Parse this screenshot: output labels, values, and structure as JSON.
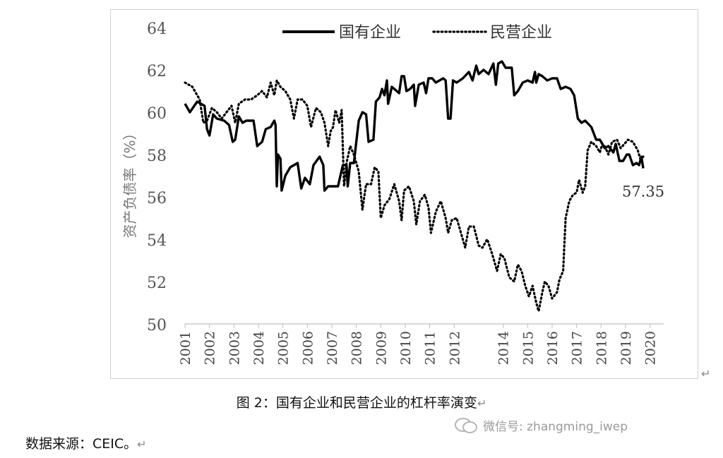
{
  "caption": "图 2：国有企业和民营企业的杠杆率演变",
  "source": "数据来源：CEIC。",
  "watermark": "微信号: zhangming_iwep",
  "return_mark": "↵",
  "chart_data": {
    "type": "line",
    "ylabel": "资产负债率（%）",
    "ylim": [
      50,
      64
    ],
    "yticks": [
      50,
      52,
      54,
      56,
      58,
      60,
      62,
      64
    ],
    "xlim": [
      2001.0,
      2020.5
    ],
    "xticks": [
      2001,
      2002,
      2003,
      2004,
      2005,
      2006,
      2007,
      2008,
      2009,
      2010,
      2011,
      2012,
      2014,
      2015,
      2016,
      2017,
      2018,
      2019,
      2020
    ],
    "xtick_labels": [
      "2001",
      "2002",
      "2003",
      "2004",
      "2005",
      "2006",
      "2007",
      "2008",
      "2009",
      "2010",
      "2011",
      "2012",
      "2014",
      "2015",
      "2016",
      "2017",
      "2018",
      "2019",
      "2020"
    ],
    "legend_position": "top",
    "annotation": "57.35",
    "series": [
      {
        "name": "国有企业",
        "style": "solid",
        "color": "#000000",
        "points": [
          [
            2001.0,
            60.4
          ],
          [
            2001.2,
            60.0
          ],
          [
            2001.5,
            60.5
          ],
          [
            2001.8,
            60.3
          ],
          [
            2001.9,
            59.2
          ],
          [
            2002.0,
            58.9
          ],
          [
            2002.15,
            59.9
          ],
          [
            2002.3,
            59.7
          ],
          [
            2002.6,
            59.6
          ],
          [
            2002.8,
            59.4
          ],
          [
            2002.95,
            58.6
          ],
          [
            2003.05,
            58.7
          ],
          [
            2003.2,
            59.8
          ],
          [
            2003.35,
            59.5
          ],
          [
            2003.5,
            59.6
          ],
          [
            2003.8,
            59.6
          ],
          [
            2003.95,
            58.4
          ],
          [
            2004.15,
            58.6
          ],
          [
            2004.3,
            59.2
          ],
          [
            2004.5,
            59.3
          ],
          [
            2004.65,
            59.6
          ],
          [
            2004.7,
            59.4
          ],
          [
            2004.75,
            56.5
          ],
          [
            2004.8,
            58.0
          ],
          [
            2004.9,
            57.8
          ],
          [
            2004.95,
            56.3
          ],
          [
            2005.1,
            57.0
          ],
          [
            2005.3,
            57.4
          ],
          [
            2005.6,
            57.6
          ],
          [
            2005.75,
            56.4
          ],
          [
            2005.9,
            56.9
          ],
          [
            2006.1,
            56.6
          ],
          [
            2006.25,
            57.5
          ],
          [
            2006.5,
            57.9
          ],
          [
            2006.65,
            57.5
          ],
          [
            2006.7,
            56.3
          ],
          [
            2006.85,
            56.5
          ],
          [
            2007.0,
            56.5
          ],
          [
            2007.25,
            56.5
          ],
          [
            2007.45,
            57.5
          ],
          [
            2007.6,
            57.5
          ],
          [
            2007.65,
            56.5
          ],
          [
            2007.75,
            57.6
          ],
          [
            2007.9,
            57.6
          ],
          [
            2008.1,
            59.6
          ],
          [
            2008.25,
            60.0
          ],
          [
            2008.4,
            59.9
          ],
          [
            2008.5,
            58.6
          ],
          [
            2008.7,
            58.7
          ],
          [
            2008.8,
            60.5
          ],
          [
            2008.95,
            60.7
          ],
          [
            2009.05,
            61.1
          ],
          [
            2009.15,
            60.8
          ],
          [
            2009.25,
            61.5
          ],
          [
            2009.3,
            60.4
          ],
          [
            2009.45,
            61.2
          ],
          [
            2009.55,
            61.1
          ],
          [
            2009.75,
            60.9
          ],
          [
            2009.85,
            61.7
          ],
          [
            2009.95,
            61.7
          ],
          [
            2010.05,
            61.0
          ],
          [
            2010.2,
            61.1
          ],
          [
            2010.35,
            61.3
          ],
          [
            2010.4,
            60.3
          ],
          [
            2010.55,
            61.3
          ],
          [
            2010.75,
            61.4
          ],
          [
            2010.85,
            60.9
          ],
          [
            2010.95,
            61.6
          ],
          [
            2011.1,
            61.6
          ],
          [
            2011.25,
            61.4
          ],
          [
            2011.4,
            61.5
          ],
          [
            2011.55,
            61.6
          ],
          [
            2011.65,
            61.5
          ],
          [
            2011.75,
            59.7
          ],
          [
            2011.85,
            59.7
          ],
          [
            2011.95,
            61.5
          ],
          [
            2012.1,
            61.4
          ],
          [
            2012.35,
            61.6
          ],
          [
            2012.6,
            61.9
          ],
          [
            2012.75,
            61.5
          ],
          [
            2012.9,
            62.2
          ],
          [
            2013.0,
            61.8
          ],
          [
            2013.2,
            62.0
          ],
          [
            2013.4,
            61.8
          ],
          [
            2013.6,
            62.3
          ],
          [
            2013.7,
            61.3
          ],
          [
            2013.8,
            62.3
          ],
          [
            2013.95,
            62.4
          ],
          [
            2014.1,
            62.1
          ],
          [
            2014.35,
            62.1
          ],
          [
            2014.45,
            60.8
          ],
          [
            2014.6,
            61.0
          ],
          [
            2014.8,
            61.4
          ],
          [
            2015.0,
            61.5
          ],
          [
            2015.2,
            61.4
          ],
          [
            2015.3,
            61.9
          ],
          [
            2015.35,
            61.4
          ],
          [
            2015.45,
            61.8
          ],
          [
            2015.6,
            61.7
          ],
          [
            2015.8,
            61.5
          ],
          [
            2016.0,
            61.6
          ],
          [
            2016.2,
            61.6
          ],
          [
            2016.35,
            61.1
          ],
          [
            2016.55,
            61.2
          ],
          [
            2016.75,
            61.1
          ],
          [
            2016.9,
            60.8
          ],
          [
            2017.05,
            59.7
          ],
          [
            2017.2,
            59.5
          ],
          [
            2017.35,
            59.6
          ],
          [
            2017.6,
            59.3
          ],
          [
            2017.8,
            58.7
          ],
          [
            2017.95,
            58.7
          ],
          [
            2018.05,
            58.5
          ],
          [
            2018.15,
            58.3
          ],
          [
            2018.3,
            58.4
          ],
          [
            2018.5,
            58.1
          ],
          [
            2018.6,
            58.5
          ],
          [
            2018.75,
            57.7
          ],
          [
            2018.9,
            57.7
          ],
          [
            2019.05,
            58.0
          ],
          [
            2019.15,
            58.0
          ],
          [
            2019.3,
            57.5
          ],
          [
            2019.45,
            57.6
          ],
          [
            2019.55,
            57.5
          ],
          [
            2019.65,
            57.9
          ],
          [
            2019.72,
            57.35
          ]
        ]
      },
      {
        "name": "民营企业",
        "style": "dotted",
        "color": "#000000",
        "points": [
          [
            2001.0,
            61.4
          ],
          [
            2001.3,
            61.2
          ],
          [
            2001.6,
            60.6
          ],
          [
            2001.75,
            59.5
          ],
          [
            2001.9,
            59.6
          ],
          [
            2002.1,
            60.2
          ],
          [
            2002.3,
            60.0
          ],
          [
            2002.5,
            59.7
          ],
          [
            2002.7,
            60.0
          ],
          [
            2002.9,
            60.3
          ],
          [
            2003.05,
            59.5
          ],
          [
            2003.2,
            60.4
          ],
          [
            2003.45,
            60.6
          ],
          [
            2003.7,
            60.6
          ],
          [
            2003.95,
            60.8
          ],
          [
            2004.15,
            61.0
          ],
          [
            2004.35,
            60.7
          ],
          [
            2004.5,
            61.4
          ],
          [
            2004.65,
            60.8
          ],
          [
            2004.75,
            61.5
          ],
          [
            2004.9,
            61.2
          ],
          [
            2005.1,
            61.0
          ],
          [
            2005.3,
            60.6
          ],
          [
            2005.45,
            59.7
          ],
          [
            2005.6,
            60.6
          ],
          [
            2005.8,
            60.6
          ],
          [
            2006.0,
            60.3
          ],
          [
            2006.15,
            59.3
          ],
          [
            2006.35,
            60.2
          ],
          [
            2006.55,
            60.0
          ],
          [
            2006.7,
            59.5
          ],
          [
            2006.85,
            58.4
          ],
          [
            2006.95,
            59.1
          ],
          [
            2007.05,
            59.3
          ],
          [
            2007.15,
            60.1
          ],
          [
            2007.3,
            59.5
          ],
          [
            2007.4,
            60.1
          ],
          [
            2007.5,
            56.5
          ],
          [
            2007.6,
            57.6
          ],
          [
            2007.75,
            58.4
          ],
          [
            2007.9,
            58.0
          ],
          [
            2008.1,
            57.2
          ],
          [
            2008.25,
            55.4
          ],
          [
            2008.4,
            56.6
          ],
          [
            2008.6,
            56.6
          ],
          [
            2008.75,
            57.4
          ],
          [
            2008.9,
            57.2
          ],
          [
            2009.0,
            55.0
          ],
          [
            2009.15,
            55.6
          ],
          [
            2009.35,
            55.9
          ],
          [
            2009.55,
            56.6
          ],
          [
            2009.75,
            55.8
          ],
          [
            2009.85,
            54.9
          ],
          [
            2009.95,
            56.3
          ],
          [
            2010.15,
            56.5
          ],
          [
            2010.35,
            55.8
          ],
          [
            2010.45,
            54.7
          ],
          [
            2010.6,
            55.8
          ],
          [
            2010.8,
            56.1
          ],
          [
            2010.95,
            55.5
          ],
          [
            2011.05,
            54.3
          ],
          [
            2011.25,
            55.3
          ],
          [
            2011.45,
            55.8
          ],
          [
            2011.65,
            55.0
          ],
          [
            2011.75,
            54.3
          ],
          [
            2011.9,
            54.9
          ],
          [
            2012.1,
            55.0
          ],
          [
            2012.3,
            54.2
          ],
          [
            2012.45,
            53.6
          ],
          [
            2012.6,
            54.6
          ],
          [
            2012.8,
            54.6
          ],
          [
            2013.0,
            53.7
          ],
          [
            2013.15,
            53.6
          ],
          [
            2013.35,
            54.0
          ],
          [
            2013.55,
            53.3
          ],
          [
            2013.75,
            52.5
          ],
          [
            2013.9,
            53.3
          ],
          [
            2014.05,
            53.1
          ],
          [
            2014.25,
            52.2
          ],
          [
            2014.45,
            52.0
          ],
          [
            2014.6,
            52.8
          ],
          [
            2014.75,
            52.5
          ],
          [
            2014.9,
            51.8
          ],
          [
            2015.05,
            51.3
          ],
          [
            2015.2,
            51.8
          ],
          [
            2015.35,
            51.0
          ],
          [
            2015.45,
            50.6
          ],
          [
            2015.6,
            51.5
          ],
          [
            2015.7,
            52.0
          ],
          [
            2015.85,
            51.8
          ],
          [
            2016.0,
            51.2
          ],
          [
            2016.2,
            51.5
          ],
          [
            2016.3,
            52.1
          ],
          [
            2016.45,
            52.5
          ],
          [
            2016.55,
            55.0
          ],
          [
            2016.7,
            55.8
          ],
          [
            2016.85,
            56.1
          ],
          [
            2017.0,
            56.2
          ],
          [
            2017.1,
            56.8
          ],
          [
            2017.25,
            56.2
          ],
          [
            2017.35,
            56.5
          ],
          [
            2017.45,
            58.2
          ],
          [
            2017.6,
            58.6
          ],
          [
            2017.8,
            58.4
          ],
          [
            2017.95,
            58.1
          ],
          [
            2018.05,
            58.5
          ],
          [
            2018.15,
            58.4
          ],
          [
            2018.3,
            58.0
          ],
          [
            2018.45,
            58.6
          ],
          [
            2018.65,
            58.7
          ],
          [
            2018.8,
            58.3
          ],
          [
            2018.95,
            58.5
          ],
          [
            2019.1,
            58.7
          ],
          [
            2019.3,
            58.6
          ],
          [
            2019.5,
            58.2
          ],
          [
            2019.6,
            57.8
          ],
          [
            2019.72,
            57.9
          ]
        ]
      }
    ]
  }
}
